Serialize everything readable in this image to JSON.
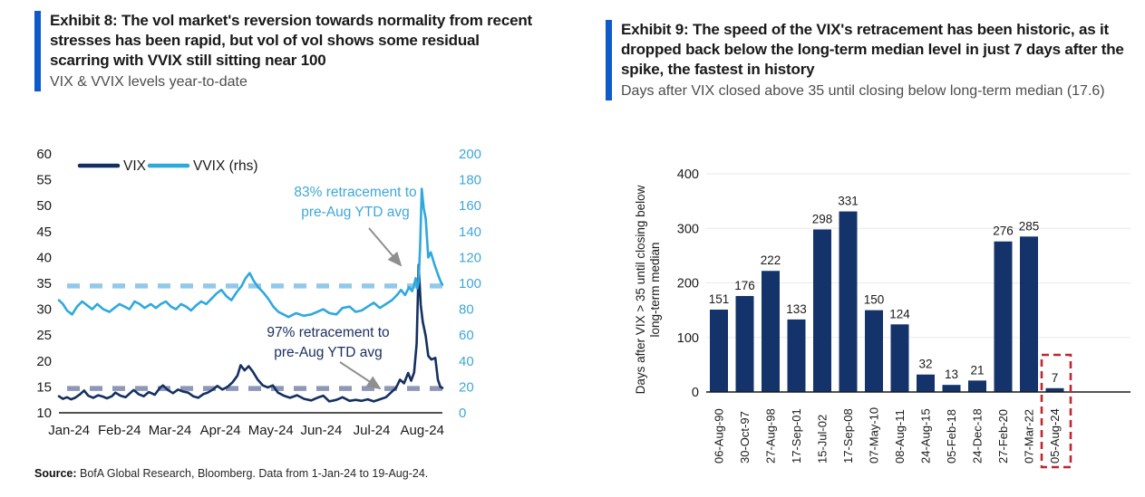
{
  "left_panel": {
    "exhibit_title": "Exhibit 8: The vol market's reversion towards normality from recent stresses has been rapid, but vol of vol shows some residual scarring with VVIX still sitting near 100",
    "subtitle": "VIX & VVIX levels year-to-date",
    "accent_color": "#0e5ac8",
    "source_label": "Source:",
    "source_text": " BofA Global Research, Bloomberg. Data from 1-Jan-24 to 19-Aug-24."
  },
  "right_panel": {
    "exhibit_title": "Exhibit 9: The speed of the VIX's retracement has been historic, as it dropped back below the long-term median level in just 7 days after the spike, the fastest in history",
    "subtitle": "Days after VIX closed above 35 until closing below long-term median (17.6)",
    "accent_color": "#0e5ac8"
  },
  "chart_data": [
    {
      "type": "line",
      "title": "VIX & VVIX levels year-to-date",
      "x_unit": "months since 1-Jan-24",
      "x_max": 7.6,
      "x_tick_labels": [
        "Jan-24",
        "Feb-24",
        "Mar-24",
        "Apr-24",
        "May-24",
        "Jun-24",
        "Jul-24",
        "Aug-24"
      ],
      "left_axis": {
        "min": 10,
        "max": 60,
        "step": 5,
        "color": "#1a1a1a"
      },
      "right_axis": {
        "min": 0,
        "max": 200,
        "step": 20,
        "color": "#3fa7d9"
      },
      "grid": false,
      "legend_position": "top-left",
      "series": [
        {
          "name": "VIX",
          "axis": "left",
          "color": "#143061",
          "width": 2.6,
          "points": [
            [
              0.0,
              13.2
            ],
            [
              0.08,
              12.7
            ],
            [
              0.16,
              13.0
            ],
            [
              0.24,
              12.6
            ],
            [
              0.32,
              12.9
            ],
            [
              0.42,
              13.6
            ],
            [
              0.5,
              14.3
            ],
            [
              0.58,
              13.3
            ],
            [
              0.68,
              12.9
            ],
            [
              0.78,
              13.4
            ],
            [
              0.88,
              13.1
            ],
            [
              0.95,
              12.8
            ],
            [
              1.05,
              13.2
            ],
            [
              1.12,
              13.9
            ],
            [
              1.22,
              13.3
            ],
            [
              1.32,
              13.0
            ],
            [
              1.4,
              13.7
            ],
            [
              1.48,
              14.4
            ],
            [
              1.58,
              13.6
            ],
            [
              1.68,
              13.2
            ],
            [
              1.78,
              14.0
            ],
            [
              1.9,
              13.5
            ],
            [
              2.0,
              14.8
            ],
            [
              2.06,
              15.3
            ],
            [
              2.16,
              14.4
            ],
            [
              2.26,
              13.8
            ],
            [
              2.36,
              14.5
            ],
            [
              2.46,
              14.1
            ],
            [
              2.56,
              13.9
            ],
            [
              2.66,
              13.2
            ],
            [
              2.76,
              12.9
            ],
            [
              2.86,
              13.6
            ],
            [
              2.95,
              13.9
            ],
            [
              3.05,
              14.5
            ],
            [
              3.14,
              15.2
            ],
            [
              3.24,
              14.5
            ],
            [
              3.34,
              15.0
            ],
            [
              3.44,
              15.9
            ],
            [
              3.54,
              17.2
            ],
            [
              3.6,
              19.2
            ],
            [
              3.68,
              18.2
            ],
            [
              3.76,
              19.0
            ],
            [
              3.84,
              18.0
            ],
            [
              3.94,
              16.4
            ],
            [
              4.04,
              15.3
            ],
            [
              4.14,
              14.9
            ],
            [
              4.24,
              15.3
            ],
            [
              4.34,
              13.9
            ],
            [
              4.46,
              13.3
            ],
            [
              4.58,
              12.9
            ],
            [
              4.72,
              13.4
            ],
            [
              4.86,
              12.7
            ],
            [
              5.0,
              12.4
            ],
            [
              5.12,
              12.9
            ],
            [
              5.24,
              13.3
            ],
            [
              5.36,
              12.2
            ],
            [
              5.5,
              12.5
            ],
            [
              5.62,
              13.0
            ],
            [
              5.76,
              12.3
            ],
            [
              5.88,
              12.5
            ],
            [
              6.0,
              12.3
            ],
            [
              6.12,
              12.6
            ],
            [
              6.24,
              12.2
            ],
            [
              6.36,
              12.6
            ],
            [
              6.48,
              13.0
            ],
            [
              6.58,
              13.9
            ],
            [
              6.68,
              14.8
            ],
            [
              6.76,
              16.4
            ],
            [
              6.84,
              15.7
            ],
            [
              6.92,
              17.7
            ],
            [
              6.98,
              16.2
            ],
            [
              7.04,
              17.8
            ],
            [
              7.09,
              23.4
            ],
            [
              7.13,
              38.6
            ],
            [
              7.17,
              30.8
            ],
            [
              7.21,
              27.6
            ],
            [
              7.27,
              24.8
            ],
            [
              7.32,
              21.0
            ],
            [
              7.38,
              20.3
            ],
            [
              7.46,
              20.6
            ],
            [
              7.51,
              16.4
            ],
            [
              7.56,
              15.0
            ],
            [
              7.6,
              14.8
            ]
          ]
        },
        {
          "name": "VVIX (rhs)",
          "axis": "right",
          "color": "#2fa8de",
          "width": 2.6,
          "points": [
            [
              0.0,
              87
            ],
            [
              0.08,
              84
            ],
            [
              0.16,
              79
            ],
            [
              0.26,
              76
            ],
            [
              0.36,
              82
            ],
            [
              0.46,
              86
            ],
            [
              0.56,
              83
            ],
            [
              0.66,
              80
            ],
            [
              0.76,
              84
            ],
            [
              0.88,
              80
            ],
            [
              1.0,
              78
            ],
            [
              1.1,
              81
            ],
            [
              1.2,
              84
            ],
            [
              1.3,
              82
            ],
            [
              1.4,
              80
            ],
            [
              1.5,
              86
            ],
            [
              1.6,
              84
            ],
            [
              1.7,
              81
            ],
            [
              1.82,
              84
            ],
            [
              1.92,
              81
            ],
            [
              2.02,
              84
            ],
            [
              2.12,
              86
            ],
            [
              2.22,
              82
            ],
            [
              2.32,
              80
            ],
            [
              2.42,
              84
            ],
            [
              2.52,
              82
            ],
            [
              2.62,
              79
            ],
            [
              2.72,
              83
            ],
            [
              2.82,
              86
            ],
            [
              2.92,
              84
            ],
            [
              3.02,
              88
            ],
            [
              3.12,
              92
            ],
            [
              3.22,
              95
            ],
            [
              3.32,
              90
            ],
            [
              3.42,
              87
            ],
            [
              3.52,
              93
            ],
            [
              3.62,
              98
            ],
            [
              3.7,
              104
            ],
            [
              3.78,
              108
            ],
            [
              3.86,
              102
            ],
            [
              3.95,
              97
            ],
            [
              4.05,
              93
            ],
            [
              4.15,
              88
            ],
            [
              4.25,
              82
            ],
            [
              4.35,
              78
            ],
            [
              4.45,
              76
            ],
            [
              4.55,
              74
            ],
            [
              4.7,
              77
            ],
            [
              4.85,
              75
            ],
            [
              5.0,
              76
            ],
            [
              5.12,
              78
            ],
            [
              5.24,
              80
            ],
            [
              5.36,
              77
            ],
            [
              5.5,
              76
            ],
            [
              5.62,
              81
            ],
            [
              5.76,
              82
            ],
            [
              5.88,
              78
            ],
            [
              6.0,
              79
            ],
            [
              6.12,
              82
            ],
            [
              6.24,
              85
            ],
            [
              6.36,
              81
            ],
            [
              6.48,
              84
            ],
            [
              6.6,
              87
            ],
            [
              6.7,
              91
            ],
            [
              6.78,
              95
            ],
            [
              6.86,
              91
            ],
            [
              6.94,
              97
            ],
            [
              7.0,
              94
            ],
            [
              7.04,
              99
            ],
            [
              7.07,
              104
            ],
            [
              7.1,
              96
            ],
            [
              7.13,
              101
            ],
            [
              7.16,
              130
            ],
            [
              7.19,
              173
            ],
            [
              7.23,
              158
            ],
            [
              7.27,
              150
            ],
            [
              7.32,
              120
            ],
            [
              7.37,
              124
            ],
            [
              7.44,
              115
            ],
            [
              7.51,
              107
            ],
            [
              7.57,
              101
            ],
            [
              7.6,
              99
            ]
          ]
        }
      ],
      "reference_lines": [
        {
          "axis": "right",
          "value": 98,
          "color": "#92c9ea",
          "meaning": "VVIX pre-Aug YTD avg"
        },
        {
          "axis": "left",
          "value": 14.7,
          "color": "#8e97b8",
          "meaning": "VIX pre-Aug YTD avg"
        }
      ],
      "annotations": [
        {
          "lines": [
            "83% retracement to",
            "pre-Aug YTD avg"
          ],
          "color": "#3fa7d9",
          "x": 362,
          "y": 57,
          "arrow": [
            377,
            92,
            412,
            133
          ]
        },
        {
          "lines": [
            "97% retracement to",
            "pre-Aug YTD avg"
          ],
          "color": "#1c3060",
          "x": 332,
          "y": 212,
          "arrow": [
            345,
            240,
            389,
            269
          ]
        }
      ],
      "arrow_color": "#8f8f8f"
    },
    {
      "type": "bar",
      "title": "Days after VIX closed above 35 until closing below long-term median (17.6)",
      "categories": [
        "06-Aug-90",
        "30-Oct-97",
        "27-Aug-98",
        "17-Sep-01",
        "15-Jul-02",
        "17-Sep-08",
        "07-May-10",
        "08-Aug-11",
        "24-Aug-15",
        "05-Feb-18",
        "24-Dec-18",
        "27-Feb-20",
        "07-Mar-22",
        "05-Aug-24"
      ],
      "values": [
        151,
        176,
        222,
        133,
        298,
        331,
        150,
        124,
        32,
        13,
        21,
        276,
        285,
        7
      ],
      "xlabel": "",
      "ylabel": "Days after VIX > 35 until closing below long-term median",
      "ylabel_lines": [
        "Days after VIX > 35 until closing below",
        "long-term median"
      ],
      "ylim": [
        0,
        400
      ],
      "ytick_step": 100,
      "grid": true,
      "grid_color": "#eaeaea",
      "bar_color": "#14336b",
      "highlight": {
        "category": "05-Aug-24",
        "value": 7,
        "box_color": "#c1272d",
        "style": "red-dashed-box"
      }
    }
  ]
}
